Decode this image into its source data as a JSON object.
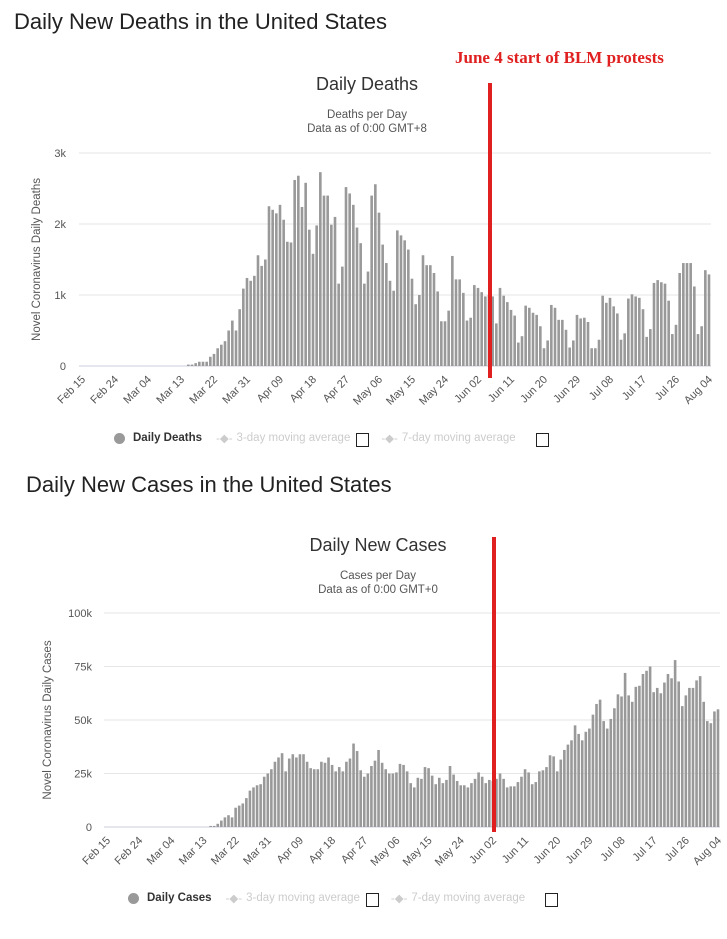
{
  "annotation": "June 4 start of BLM protests",
  "colors": {
    "bar": "#999999",
    "annotation": "#e02020",
    "grid": "#e6e6e6"
  },
  "chart_data": [
    {
      "type": "bar",
      "page_title": "Daily New Deaths in the United States",
      "title": "Daily Deaths",
      "subtitle": [
        "Deaths per Day",
        "Data as of 0:00 GMT+8"
      ],
      "ylabel": "Novel Coronavirus Daily Deaths",
      "ylim": [
        0,
        3000
      ],
      "y_ticks": [
        "0",
        "1k",
        "2k",
        "3k"
      ],
      "y_tick_values": [
        0,
        1000,
        2000,
        3000
      ],
      "x_ticks": [
        "Feb 15",
        "Feb 24",
        "Mar 04",
        "Mar 13",
        "Mar 22",
        "Mar 31",
        "Apr 09",
        "Apr 18",
        "Apr 27",
        "May 06",
        "May 15",
        "May 24",
        "Jun 02",
        "Jun 11",
        "Jun 20",
        "Jun 29",
        "Jul 08",
        "Jul 17",
        "Jul 26",
        "Aug 04"
      ],
      "grid": true,
      "legend": {
        "position": "bottom",
        "items": [
          "Daily Deaths",
          "3-day moving average",
          "7-day moving average"
        ]
      },
      "series": [
        {
          "name": "Daily Deaths",
          "values": [
            0,
            0,
            0,
            0,
            0,
            0,
            0,
            0,
            0,
            0,
            0,
            0,
            0,
            0,
            0,
            0,
            0,
            0,
            0,
            0,
            0,
            0,
            0,
            0,
            0,
            0,
            0,
            0,
            0,
            20,
            20,
            40,
            60,
            60,
            60,
            130,
            170,
            250,
            300,
            350,
            500,
            640,
            500,
            800,
            1090,
            1240,
            1200,
            1270,
            1560,
            1410,
            1500,
            2250,
            2200,
            2150,
            2270,
            2060,
            1750,
            1740,
            2620,
            2680,
            2240,
            2580,
            1920,
            1580,
            1980,
            2730,
            2400,
            2400,
            1990,
            2100,
            1160,
            1400,
            2520,
            2430,
            2270,
            1950,
            1730,
            1160,
            1330,
            2400,
            2560,
            2160,
            1710,
            1450,
            1200,
            1060,
            1910,
            1840,
            1770,
            1640,
            1230,
            870,
            1000,
            1560,
            1420,
            1420,
            1310,
            1050,
            630,
            630,
            780,
            1550,
            1220,
            1220,
            1030,
            640,
            680,
            1140,
            1100,
            1040,
            980,
            1000,
            980,
            600,
            1100,
            990,
            900,
            790,
            710,
            330,
            420,
            850,
            820,
            750,
            720,
            560,
            250,
            360,
            860,
            820,
            650,
            650,
            510,
            260,
            360,
            720,
            670,
            680,
            620,
            250,
            250,
            370,
            990,
            890,
            960,
            840,
            740,
            370,
            460,
            950,
            1010,
            980,
            960,
            800,
            410,
            520,
            1170,
            1210,
            1180,
            1160,
            920,
            450,
            580,
            1310,
            1450,
            1450,
            1450,
            1120,
            450,
            560,
            1350,
            1290
          ]
        }
      ]
    },
    {
      "type": "bar",
      "page_title": "Daily New Cases in the United States",
      "title": "Daily New Cases",
      "subtitle": [
        "Cases per Day",
        "Data as of 0:00 GMT+0"
      ],
      "ylabel": "Novel Coronavirus Daily Cases",
      "ylim": [
        0,
        100000
      ],
      "y_ticks": [
        "0",
        "25k",
        "50k",
        "75k",
        "100k"
      ],
      "y_tick_values": [
        0,
        25000,
        50000,
        75000,
        100000
      ],
      "x_ticks": [
        "Feb 15",
        "Feb 24",
        "Mar 04",
        "Mar 13",
        "Mar 22",
        "Mar 31",
        "Apr 09",
        "Apr 18",
        "Apr 27",
        "May 06",
        "May 15",
        "May 24",
        "Jun 02",
        "Jun 11",
        "Jun 20",
        "Jun 29",
        "Jul 08",
        "Jul 17",
        "Jul 26",
        "Aug 04"
      ],
      "grid": true,
      "legend": {
        "position": "bottom",
        "items": [
          "Daily Cases",
          "3-day moving average",
          "7-day moving average"
        ]
      },
      "series": [
        {
          "name": "Daily Cases",
          "values": [
            0,
            0,
            0,
            0,
            0,
            0,
            0,
            0,
            0,
            0,
            0,
            0,
            0,
            0,
            0,
            0,
            0,
            0,
            0,
            0,
            0,
            0,
            0,
            0,
            0,
            0,
            0,
            0,
            0,
            500,
            500,
            1500,
            3000,
            4500,
            5500,
            4500,
            9000,
            10000,
            11000,
            13500,
            17000,
            18500,
            19500,
            20000,
            23500,
            25000,
            27000,
            30500,
            32500,
            34500,
            26000,
            32000,
            34000,
            32500,
            34000,
            34000,
            30500,
            27500,
            27000,
            27000,
            30500,
            30000,
            32500,
            29000,
            26000,
            28000,
            26000,
            30500,
            32000,
            39000,
            35500,
            26500,
            23500,
            25000,
            28500,
            31000,
            36000,
            30000,
            27000,
            25000,
            25000,
            25500,
            29500,
            29000,
            26000,
            20500,
            18500,
            23000,
            22500,
            28000,
            27500,
            24000,
            20000,
            23000,
            20500,
            22000,
            28500,
            24500,
            21500,
            19500,
            19500,
            18500,
            20500,
            22500,
            25500,
            23500,
            20500,
            22000,
            21500,
            22500,
            25000,
            22500,
            18500,
            19000,
            19000,
            21000,
            23500,
            27000,
            25500,
            20000,
            21000,
            26000,
            26500,
            28000,
            33500,
            33000,
            26000,
            31500,
            36000,
            38500,
            40500,
            47500,
            43500,
            40500,
            44500,
            46000,
            52500,
            57500,
            59500,
            49500,
            46000,
            50500,
            55500,
            62000,
            61000,
            72000,
            61500,
            58500,
            65500,
            66000,
            71500,
            73000,
            75000,
            63000,
            65000,
            62500,
            67500,
            71500,
            69500,
            78000,
            68000,
            56500,
            61500,
            65000,
            65000,
            68500,
            70500,
            58500,
            49500,
            48500,
            54000,
            55000
          ]
        }
      ]
    }
  ]
}
